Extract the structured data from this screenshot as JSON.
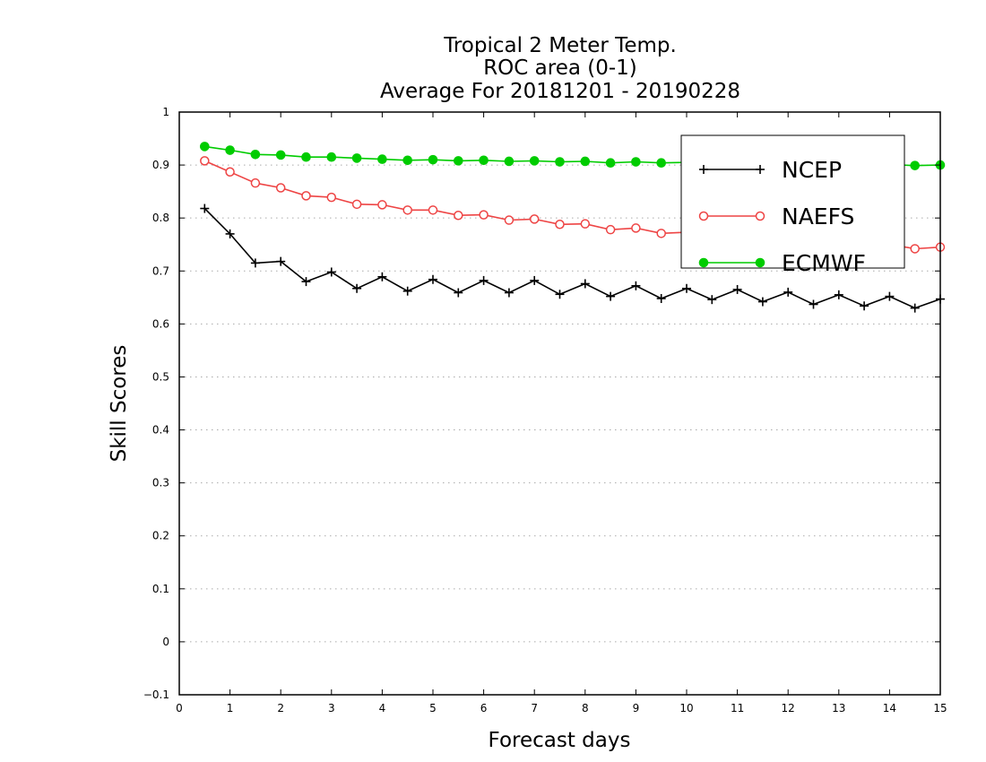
{
  "chart_data": {
    "type": "line",
    "title": [
      "Tropical 2 Meter Temp.",
      "ROC area (0-1)",
      "Average For 20181201 - 20190228"
    ],
    "xlabel": "Forecast days",
    "ylabel": "Skill Scores",
    "xlim": [
      0,
      15
    ],
    "ylim": [
      -0.1,
      1
    ],
    "x_ticks": [
      "0",
      "1",
      "2",
      "3",
      "4",
      "5",
      "6",
      "7",
      "8",
      "9",
      "10",
      "11",
      "12",
      "13",
      "14",
      "15"
    ],
    "y_ticks": [
      "−0.1",
      "0",
      "0.1",
      "0.2",
      "0.3",
      "0.4",
      "0.5",
      "0.6",
      "0.7",
      "0.8",
      "0.9",
      "1"
    ],
    "grid": "horizontal dotted",
    "legend_position": "top-right",
    "x": [
      0.5,
      1,
      1.5,
      2,
      2.5,
      3,
      3.5,
      4,
      4.5,
      5,
      5.5,
      6,
      6.5,
      7,
      7.5,
      8,
      8.5,
      9,
      9.5,
      10,
      10.5,
      11,
      11.5,
      12,
      12.5,
      13,
      13.5,
      14,
      14.5,
      15
    ],
    "series": [
      {
        "name": "NCEP",
        "color": "#000000",
        "marker": "plus",
        "values": [
          0.818,
          0.77,
          0.715,
          0.718,
          0.68,
          0.698,
          0.667,
          0.689,
          0.662,
          0.684,
          0.659,
          0.682,
          0.659,
          0.682,
          0.656,
          0.676,
          0.652,
          0.672,
          0.648,
          0.667,
          0.646,
          0.665,
          0.642,
          0.66,
          0.637,
          0.655,
          0.634,
          0.652,
          0.63,
          0.647
        ]
      },
      {
        "name": "NAEFS",
        "color": "#ee4444",
        "marker": "open-circle",
        "values": [
          0.908,
          0.887,
          0.866,
          0.857,
          0.842,
          0.839,
          0.826,
          0.825,
          0.815,
          0.815,
          0.805,
          0.806,
          0.796,
          0.798,
          0.788,
          0.789,
          0.778,
          0.781,
          0.771,
          0.773,
          0.764,
          0.766,
          0.758,
          0.761,
          0.753,
          0.755,
          0.749,
          0.75,
          0.742,
          0.745
        ]
      },
      {
        "name": "ECMWF",
        "color": "#00cc00",
        "marker": "filled-circle",
        "values": [
          0.935,
          0.928,
          0.92,
          0.919,
          0.915,
          0.915,
          0.913,
          0.911,
          0.909,
          0.91,
          0.908,
          0.909,
          0.907,
          0.908,
          0.906,
          0.907,
          0.904,
          0.906,
          0.904,
          0.905,
          0.903,
          0.904,
          0.902,
          0.903,
          0.901,
          0.902,
          0.9,
          0.901,
          0.899,
          0.9
        ]
      }
    ]
  }
}
